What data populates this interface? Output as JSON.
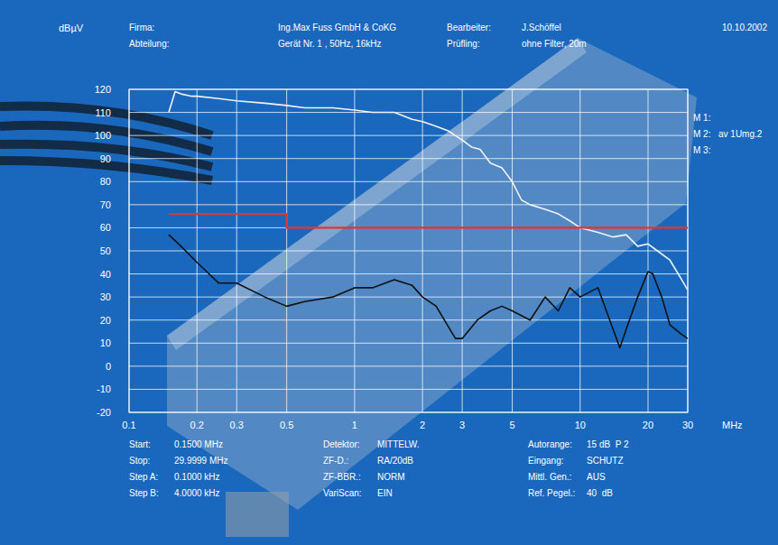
{
  "chart_data": {
    "type": "line",
    "y_label": "dBµV",
    "x_label": "MHz",
    "date": "10.10.2002",
    "header_fields": [
      {
        "label": "Firma:",
        "value": "Ing.Max Fuss GmbH & CoKG"
      },
      {
        "label": "Abteilung:",
        "value": "Gerät Nr. 1 , 50Hz, 16kHz"
      },
      {
        "label": "Bearbeiter:",
        "value": "J.Schöffel"
      },
      {
        "label": "Prüfling:",
        "value": "ohne Filter, 20m"
      }
    ],
    "markers": [
      {
        "label": "M 1:"
      },
      {
        "label": "M 2:",
        "value": "av 1Umg.2"
      },
      {
        "label": "M 3:"
      }
    ],
    "footer_fields": [
      {
        "label": "Start:",
        "value": "0.1500 MHz"
      },
      {
        "label": "Stop:",
        "value": "29.9999 MHz"
      },
      {
        "label": "Step A:",
        "value": "0.1000 kHz"
      },
      {
        "label": "Step B:",
        "value": "4.0000 kHz"
      },
      {
        "label": "Detektor:",
        "value": "MITTELW."
      },
      {
        "label": "ZF-D.:",
        "value": "RA/20dB"
      },
      {
        "label": "ZF-BBR.:",
        "value": "NORM"
      },
      {
        "label": "VariScan:",
        "value": "EIN"
      },
      {
        "label": "Autorange:",
        "value": "15 dB  P 2"
      },
      {
        "label": "Eingang:",
        "value": "SCHUTZ"
      },
      {
        "label": "Mittl. Gen.:",
        "value": "AUS"
      },
      {
        "label": "Ref. Pegel.:",
        "value": "40  dB"
      }
    ],
    "log": "x",
    "grid": true,
    "xlim": [
      0.1,
      30
    ],
    "xticks": [
      0.1,
      0.2,
      0.3,
      0.5,
      1,
      2,
      3,
      5,
      10,
      20,
      30
    ],
    "ylim": [
      -20,
      120
    ],
    "yticks": [
      -20,
      -10,
      0,
      10,
      20,
      30,
      40,
      50,
      60,
      70,
      80,
      90,
      100,
      110,
      120
    ],
    "series": [
      {
        "color": "#f2f2f2",
        "x": [
          0.15,
          0.16,
          0.17,
          0.19,
          0.2,
          0.25,
          0.3,
          0.4,
          0.5,
          0.6,
          0.8,
          1,
          1.2,
          1.5,
          1.8,
          2,
          2.3,
          2.6,
          3,
          3.3,
          3.6,
          4,
          4.5,
          5,
          5.5,
          6,
          7,
          8,
          9,
          10,
          12,
          14,
          16,
          18,
          20,
          22,
          25,
          28,
          30
        ],
        "values": [
          110,
          119,
          118,
          117,
          117,
          116,
          115,
          114,
          113,
          112,
          112,
          111,
          110,
          110,
          107,
          106,
          104,
          102,
          98,
          95,
          94,
          88,
          86,
          80,
          72,
          70,
          68,
          66,
          63,
          60,
          58,
          56,
          57,
          52,
          53,
          50,
          46,
          38,
          33
        ]
      },
      {
        "color": "#111111",
        "x": [
          0.15,
          0.17,
          0.2,
          0.25,
          0.3,
          0.4,
          0.5,
          0.6,
          0.8,
          1,
          1.2,
          1.5,
          1.8,
          2,
          2.3,
          2.5,
          2.8,
          3,
          3.5,
          4,
          4.5,
          5,
          6,
          7,
          8,
          9,
          10,
          12,
          14,
          15,
          16,
          18,
          20,
          21,
          23,
          25,
          28,
          30
        ],
        "values": [
          57,
          52,
          45,
          36,
          36,
          30,
          26,
          28,
          30,
          34,
          34,
          37.5,
          35,
          30,
          26,
          20,
          12,
          12,
          20,
          24,
          26,
          24,
          20,
          30,
          24,
          34,
          30,
          34,
          16,
          8,
          16,
          30,
          41,
          40,
          30,
          18,
          14,
          12
        ]
      },
      {
        "color": "#e8322e",
        "x": [
          0.15,
          0.5,
          0.5,
          30
        ],
        "values": [
          66,
          66,
          60,
          60
        ]
      }
    ]
  }
}
